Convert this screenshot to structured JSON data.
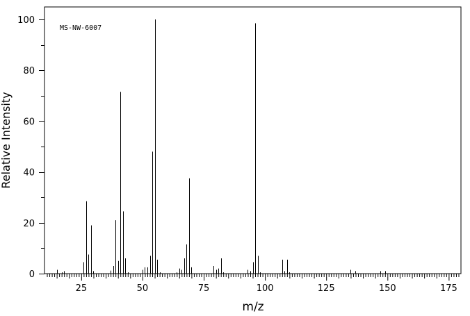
{
  "chart_data": {
    "type": "bar",
    "title": "",
    "annotation": "MS-NW-6007",
    "xlabel": "m/z",
    "ylabel": "Relative Intensity",
    "xlim": [
      10,
      180
    ],
    "ylim": [
      0,
      105
    ],
    "x_ticks": [
      25,
      50,
      75,
      100,
      125,
      150,
      175
    ],
    "y_ticks": [
      0,
      20,
      40,
      60,
      80,
      100
    ],
    "grid": false,
    "series": [
      {
        "peaks": [
          [
            15,
            1.5
          ],
          [
            17,
            0.5
          ],
          [
            18,
            1.0
          ],
          [
            26,
            4.5
          ],
          [
            27,
            28.5
          ],
          [
            28,
            7.5
          ],
          [
            29,
            19.0
          ],
          [
            30,
            1.0
          ],
          [
            37,
            1.2
          ],
          [
            38,
            3.0
          ],
          [
            39,
            21.0
          ],
          [
            40,
            5.0
          ],
          [
            41,
            71.5
          ],
          [
            42,
            24.5
          ],
          [
            43,
            6.0
          ],
          [
            44,
            0.5
          ],
          [
            50,
            1.5
          ],
          [
            51,
            2.5
          ],
          [
            52,
            2.5
          ],
          [
            53,
            7.0
          ],
          [
            54,
            48.0
          ],
          [
            55,
            100.0
          ],
          [
            56,
            5.5
          ],
          [
            57,
            0.5
          ],
          [
            64,
            0.5
          ],
          [
            65,
            2.0
          ],
          [
            66,
            1.5
          ],
          [
            67,
            6.0
          ],
          [
            68,
            11.5
          ],
          [
            69,
            37.5
          ],
          [
            70,
            2.5
          ],
          [
            79,
            3.0
          ],
          [
            80,
            1.5
          ],
          [
            81,
            2.0
          ],
          [
            82,
            6.0
          ],
          [
            83,
            0.5
          ],
          [
            93,
            1.5
          ],
          [
            94,
            1.0
          ],
          [
            95,
            4.5
          ],
          [
            96,
            98.5
          ],
          [
            97,
            7.0
          ],
          [
            98,
            0.5
          ],
          [
            107,
            5.5
          ],
          [
            108,
            1.0
          ],
          [
            109,
            5.5
          ],
          [
            110,
            0.5
          ],
          [
            135,
            1.5
          ],
          [
            137,
            1.0
          ],
          [
            147,
            1.0
          ],
          [
            149,
            1.0
          ]
        ]
      }
    ]
  }
}
